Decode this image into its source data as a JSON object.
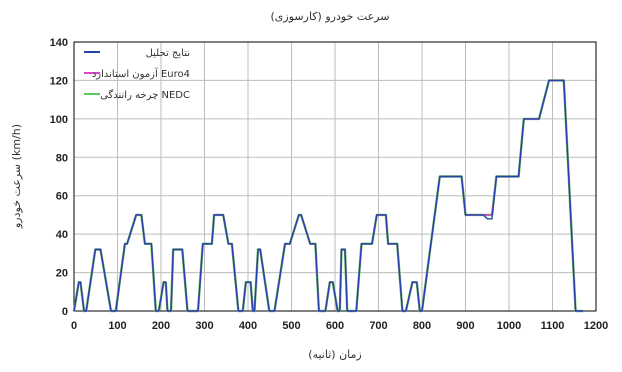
{
  "chart_data": {
    "type": "line",
    "title": "سرعت خودرو (کارسوزی)",
    "xlabel": "زمان (ثانیه)",
    "ylabel": "سرعت خودرو (km/h)",
    "xlim": [
      0,
      1200
    ],
    "ylim": [
      0,
      140
    ],
    "xticks": [
      "0",
      "100",
      "200",
      "300",
      "400",
      "500",
      "600",
      "700",
      "800",
      "900",
      "1000",
      "1100",
      "1200"
    ],
    "yticks": [
      "0",
      "20",
      "40",
      "60",
      "80",
      "100",
      "120",
      "140"
    ],
    "grid": true,
    "legend_position": "top-left",
    "series": [
      {
        "name": "نتایج تحلیل",
        "color": "#2244aa",
        "x": [
          0,
          11,
          15,
          23,
          28,
          49,
          61,
          85,
          96,
          117,
          122,
          143,
          155,
          163,
          178,
          188,
          195,
          206,
          211,
          215,
          223,
          228,
          249,
          261,
          285,
          296,
          317,
          322,
          343,
          355,
          363,
          378,
          388,
          395,
          406,
          411,
          415,
          423,
          428,
          449,
          461,
          485,
          496,
          517,
          522,
          543,
          555,
          563,
          578,
          588,
          595,
          606,
          611,
          615,
          623,
          628,
          649,
          661,
          685,
          696,
          717,
          722,
          743,
          755,
          763,
          778,
          788,
          795,
          800,
          841,
          891,
          900,
          941,
          950,
          961,
          971,
          986,
          1022,
          1034,
          1063,
          1069,
          1092,
          1108,
          1114,
          1126,
          1153,
          1170
        ],
        "y": [
          0,
          15,
          15,
          0,
          0,
          32,
          32,
          0,
          0,
          35,
          35,
          50,
          50,
          35,
          35,
          0,
          0,
          15,
          15,
          0,
          0,
          32,
          32,
          0,
          0,
          35,
          35,
          50,
          50,
          35,
          35,
          0,
          0,
          15,
          15,
          0,
          0,
          32,
          32,
          0,
          0,
          35,
          35,
          50,
          50,
          35,
          35,
          0,
          0,
          15,
          15,
          0,
          0,
          32,
          32,
          0,
          0,
          35,
          35,
          50,
          50,
          35,
          35,
          0,
          0,
          15,
          15,
          0,
          0,
          70,
          70,
          50,
          50,
          48,
          48,
          70,
          70,
          70,
          100,
          100,
          100,
          120,
          120,
          120,
          120,
          0,
          0
        ]
      },
      {
        "name": "آزمون استاندارد Euro4",
        "color": "#dd44cc",
        "x": [
          0,
          11,
          15,
          23,
          28,
          49,
          61,
          85,
          96,
          117,
          122,
          143,
          155,
          163,
          178,
          188,
          195,
          206,
          211,
          215,
          223,
          228,
          249,
          261,
          285,
          296,
          317,
          322,
          343,
          355,
          363,
          378,
          388,
          395,
          406,
          411,
          415,
          423,
          428,
          449,
          461,
          485,
          496,
          517,
          522,
          543,
          555,
          563,
          578,
          588,
          595,
          606,
          611,
          615,
          623,
          628,
          649,
          661,
          685,
          696,
          717,
          722,
          743,
          755,
          763,
          778,
          788,
          795,
          800,
          841,
          891,
          900,
          941,
          950,
          961,
          971,
          986,
          1022,
          1034,
          1063,
          1069,
          1092,
          1108,
          1114,
          1126,
          1153,
          1170
        ],
        "y": [
          0,
          15,
          15,
          0,
          0,
          32,
          32,
          0,
          0,
          35,
          35,
          50,
          50,
          35,
          35,
          0,
          0,
          15,
          15,
          0,
          0,
          32,
          32,
          0,
          0,
          35,
          35,
          50,
          50,
          35,
          35,
          0,
          0,
          15,
          15,
          0,
          0,
          32,
          32,
          0,
          0,
          35,
          35,
          50,
          50,
          35,
          35,
          0,
          0,
          15,
          15,
          0,
          0,
          32,
          32,
          0,
          0,
          35,
          35,
          50,
          50,
          35,
          35,
          0,
          0,
          15,
          15,
          0,
          0,
          70,
          70,
          50,
          50,
          50,
          50,
          70,
          70,
          70,
          100,
          100,
          100,
          120,
          120,
          120,
          120,
          0,
          0
        ]
      },
      {
        "name": "چرخه رانندگی NEDC",
        "color": "#55cc55",
        "x": [
          0,
          11,
          15,
          23,
          28,
          49,
          61,
          85,
          96,
          117,
          122,
          143,
          155,
          163,
          178,
          188,
          195,
          206,
          211,
          215,
          223,
          228,
          249,
          261,
          285,
          296,
          317,
          322,
          343,
          355,
          363,
          378,
          388,
          395,
          406,
          411,
          415,
          423,
          428,
          449,
          461,
          485,
          496,
          517,
          522,
          543,
          555,
          563,
          578,
          588,
          595,
          606,
          611,
          615,
          623,
          628,
          649,
          661,
          685,
          696,
          717,
          722,
          743,
          755,
          763,
          778,
          788,
          795,
          800,
          841,
          891,
          900,
          941,
          950,
          961,
          971,
          986,
          1022,
          1034,
          1063,
          1069,
          1092,
          1108,
          1114,
          1126,
          1153,
          1170
        ],
        "y": [
          0,
          15,
          15,
          0,
          0,
          32,
          32,
          0,
          0,
          35,
          35,
          50,
          50,
          35,
          35,
          0,
          0,
          15,
          15,
          0,
          0,
          32,
          32,
          0,
          0,
          35,
          35,
          50,
          50,
          35,
          35,
          0,
          0,
          15,
          15,
          0,
          0,
          32,
          32,
          0,
          0,
          35,
          35,
          50,
          50,
          35,
          35,
          0,
          0,
          15,
          15,
          0,
          0,
          32,
          32,
          0,
          0,
          35,
          35,
          50,
          50,
          35,
          35,
          0,
          0,
          15,
          15,
          0,
          0,
          70,
          70,
          50,
          50,
          50,
          50,
          70,
          70,
          70,
          100,
          100,
          100,
          120,
          120,
          120,
          120,
          0,
          0
        ]
      }
    ]
  }
}
